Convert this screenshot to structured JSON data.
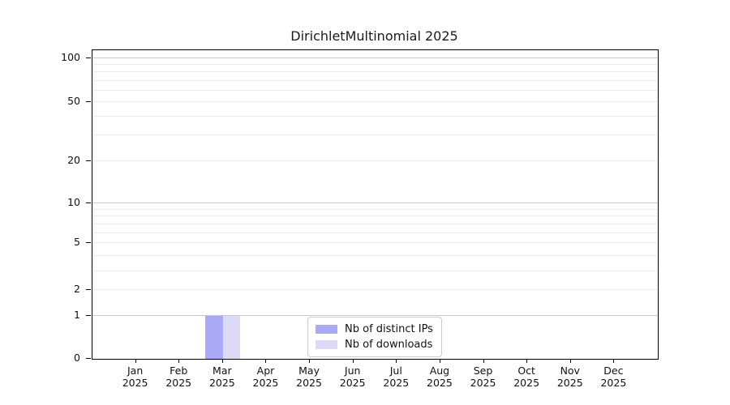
{
  "chart_data": {
    "type": "bar",
    "title": "DirichletMultinomial 2025",
    "categories": [
      "Jan 2025",
      "Feb 2025",
      "Mar 2025",
      "Apr 2025",
      "May 2025",
      "Jun 2025",
      "Jul 2025",
      "Aug 2025",
      "Sep 2025",
      "Oct 2025",
      "Nov 2025",
      "Dec 2025"
    ],
    "series": [
      {
        "name": "Nb of distinct IPs",
        "color": "#a9a9f6",
        "values": [
          0,
          0,
          1,
          0,
          0,
          0,
          0,
          0,
          0,
          0,
          0,
          0
        ]
      },
      {
        "name": "Nb of downloads",
        "color": "#dbdbf8",
        "values": [
          0,
          0,
          1,
          0,
          0,
          0,
          0,
          0,
          0,
          0,
          0,
          0
        ]
      }
    ],
    "xlabel": "",
    "ylabel": "",
    "yscale": "symlog-like",
    "ylim": [
      0,
      110
    ],
    "yticks": [
      0,
      1,
      2,
      5,
      10,
      20,
      50,
      100
    ],
    "grid": "horizontal, log minors at 3,4,6,7,8,9,30,40,60,70,80,90",
    "legend_position": "lower center (inside plot)",
    "colors": {
      "grid_minor": "#ececec",
      "grid_decade": "#c9c9c9",
      "axis": "#000000",
      "background": "#ffffff"
    }
  }
}
